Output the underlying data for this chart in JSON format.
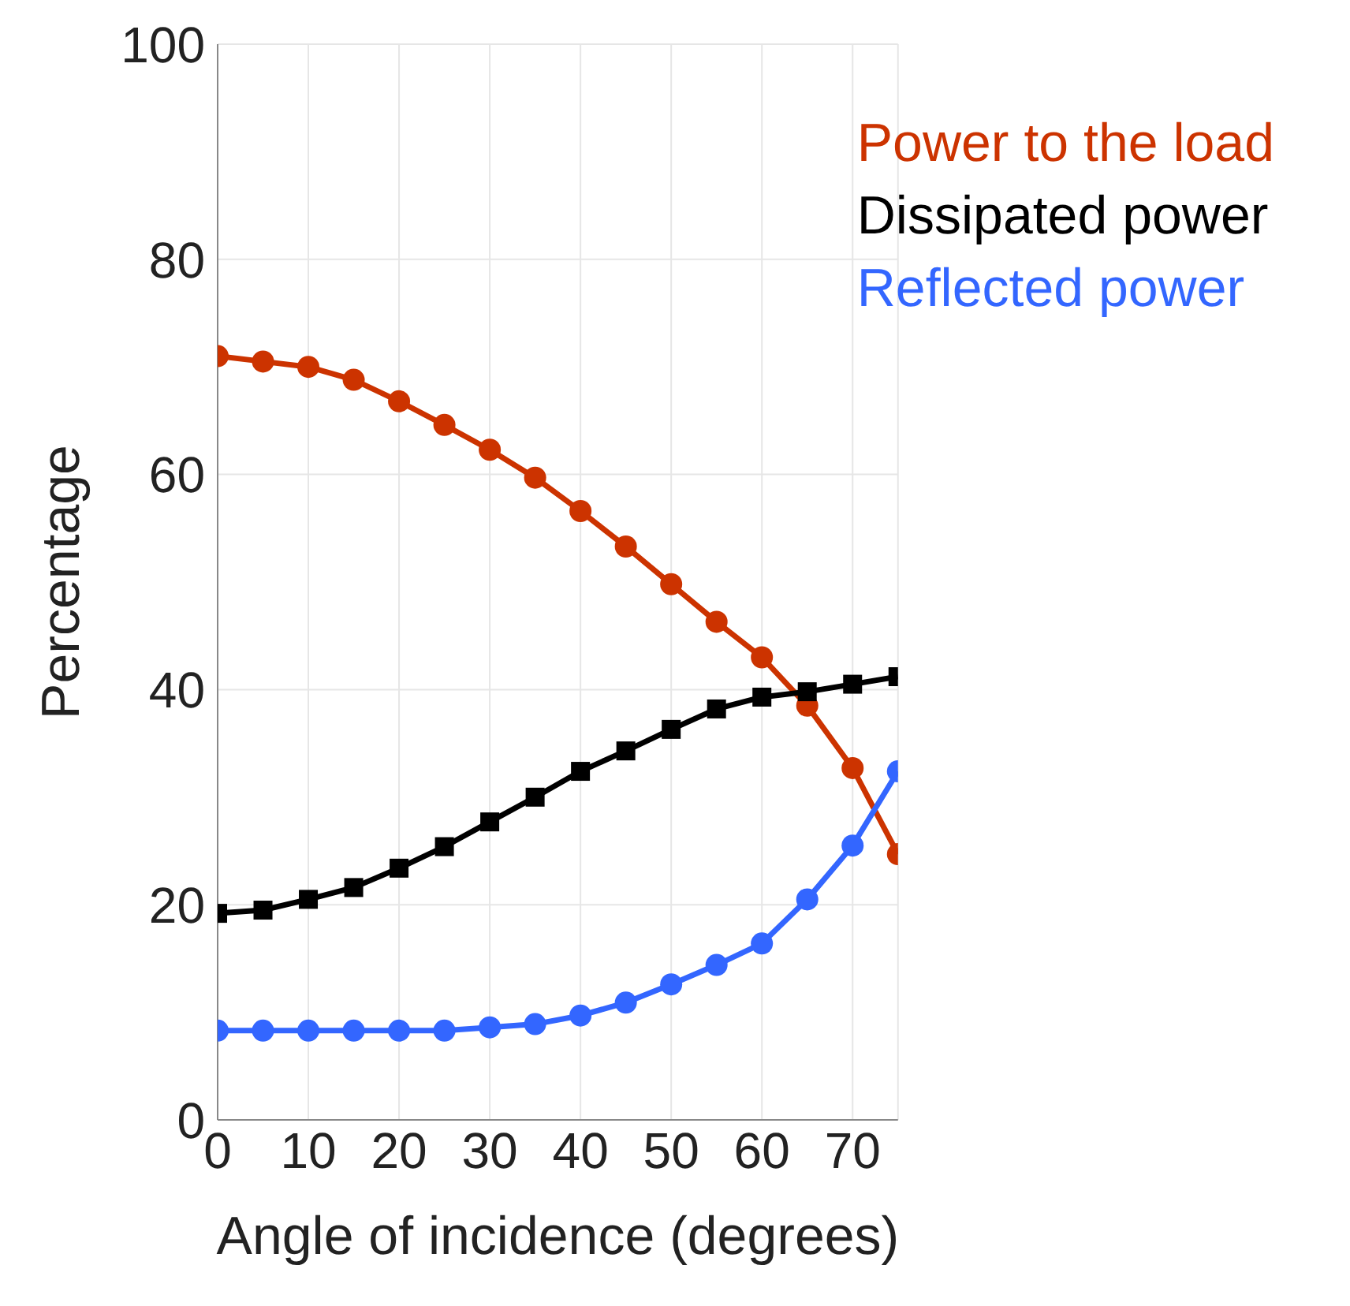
{
  "chart_data": {
    "type": "line",
    "xlabel": "Angle of incidence (degrees)",
    "ylabel": "Percentage",
    "x": [
      0,
      5,
      10,
      15,
      20,
      25,
      30,
      35,
      40,
      45,
      50,
      55,
      60,
      65,
      70,
      75
    ],
    "series": [
      {
        "name": "Power to the load",
        "color": "#cc3300",
        "marker": "circle",
        "values": [
          71,
          70.5,
          70,
          68.8,
          66.8,
          64.6,
          62.3,
          59.7,
          56.6,
          53.3,
          49.8,
          46.3,
          43,
          38.5,
          32.7,
          24.7
        ]
      },
      {
        "name": "Dissipated power",
        "color": "#000000",
        "marker": "square",
        "values": [
          19.2,
          19.5,
          20.5,
          21.6,
          23.4,
          25.4,
          27.7,
          30,
          32.4,
          34.3,
          36.3,
          38.2,
          39.3,
          39.8,
          40.5,
          41.2
        ]
      },
      {
        "name": "Reflected power",
        "color": "#3366ff",
        "marker": "circle",
        "values": [
          8.3,
          8.3,
          8.3,
          8.3,
          8.3,
          8.3,
          8.6,
          8.9,
          9.7,
          10.9,
          12.6,
          14.4,
          16.4,
          20.5,
          25.5,
          32.4
        ]
      }
    ],
    "xlim": [
      0,
      75
    ],
    "xticks": [
      0,
      10,
      20,
      30,
      40,
      50,
      60,
      70
    ],
    "ylim": [
      0,
      100
    ],
    "yticks": [
      0,
      20,
      40,
      60,
      80,
      100
    ],
    "grid": true,
    "legend": "top right",
    "line_style": "solid"
  }
}
